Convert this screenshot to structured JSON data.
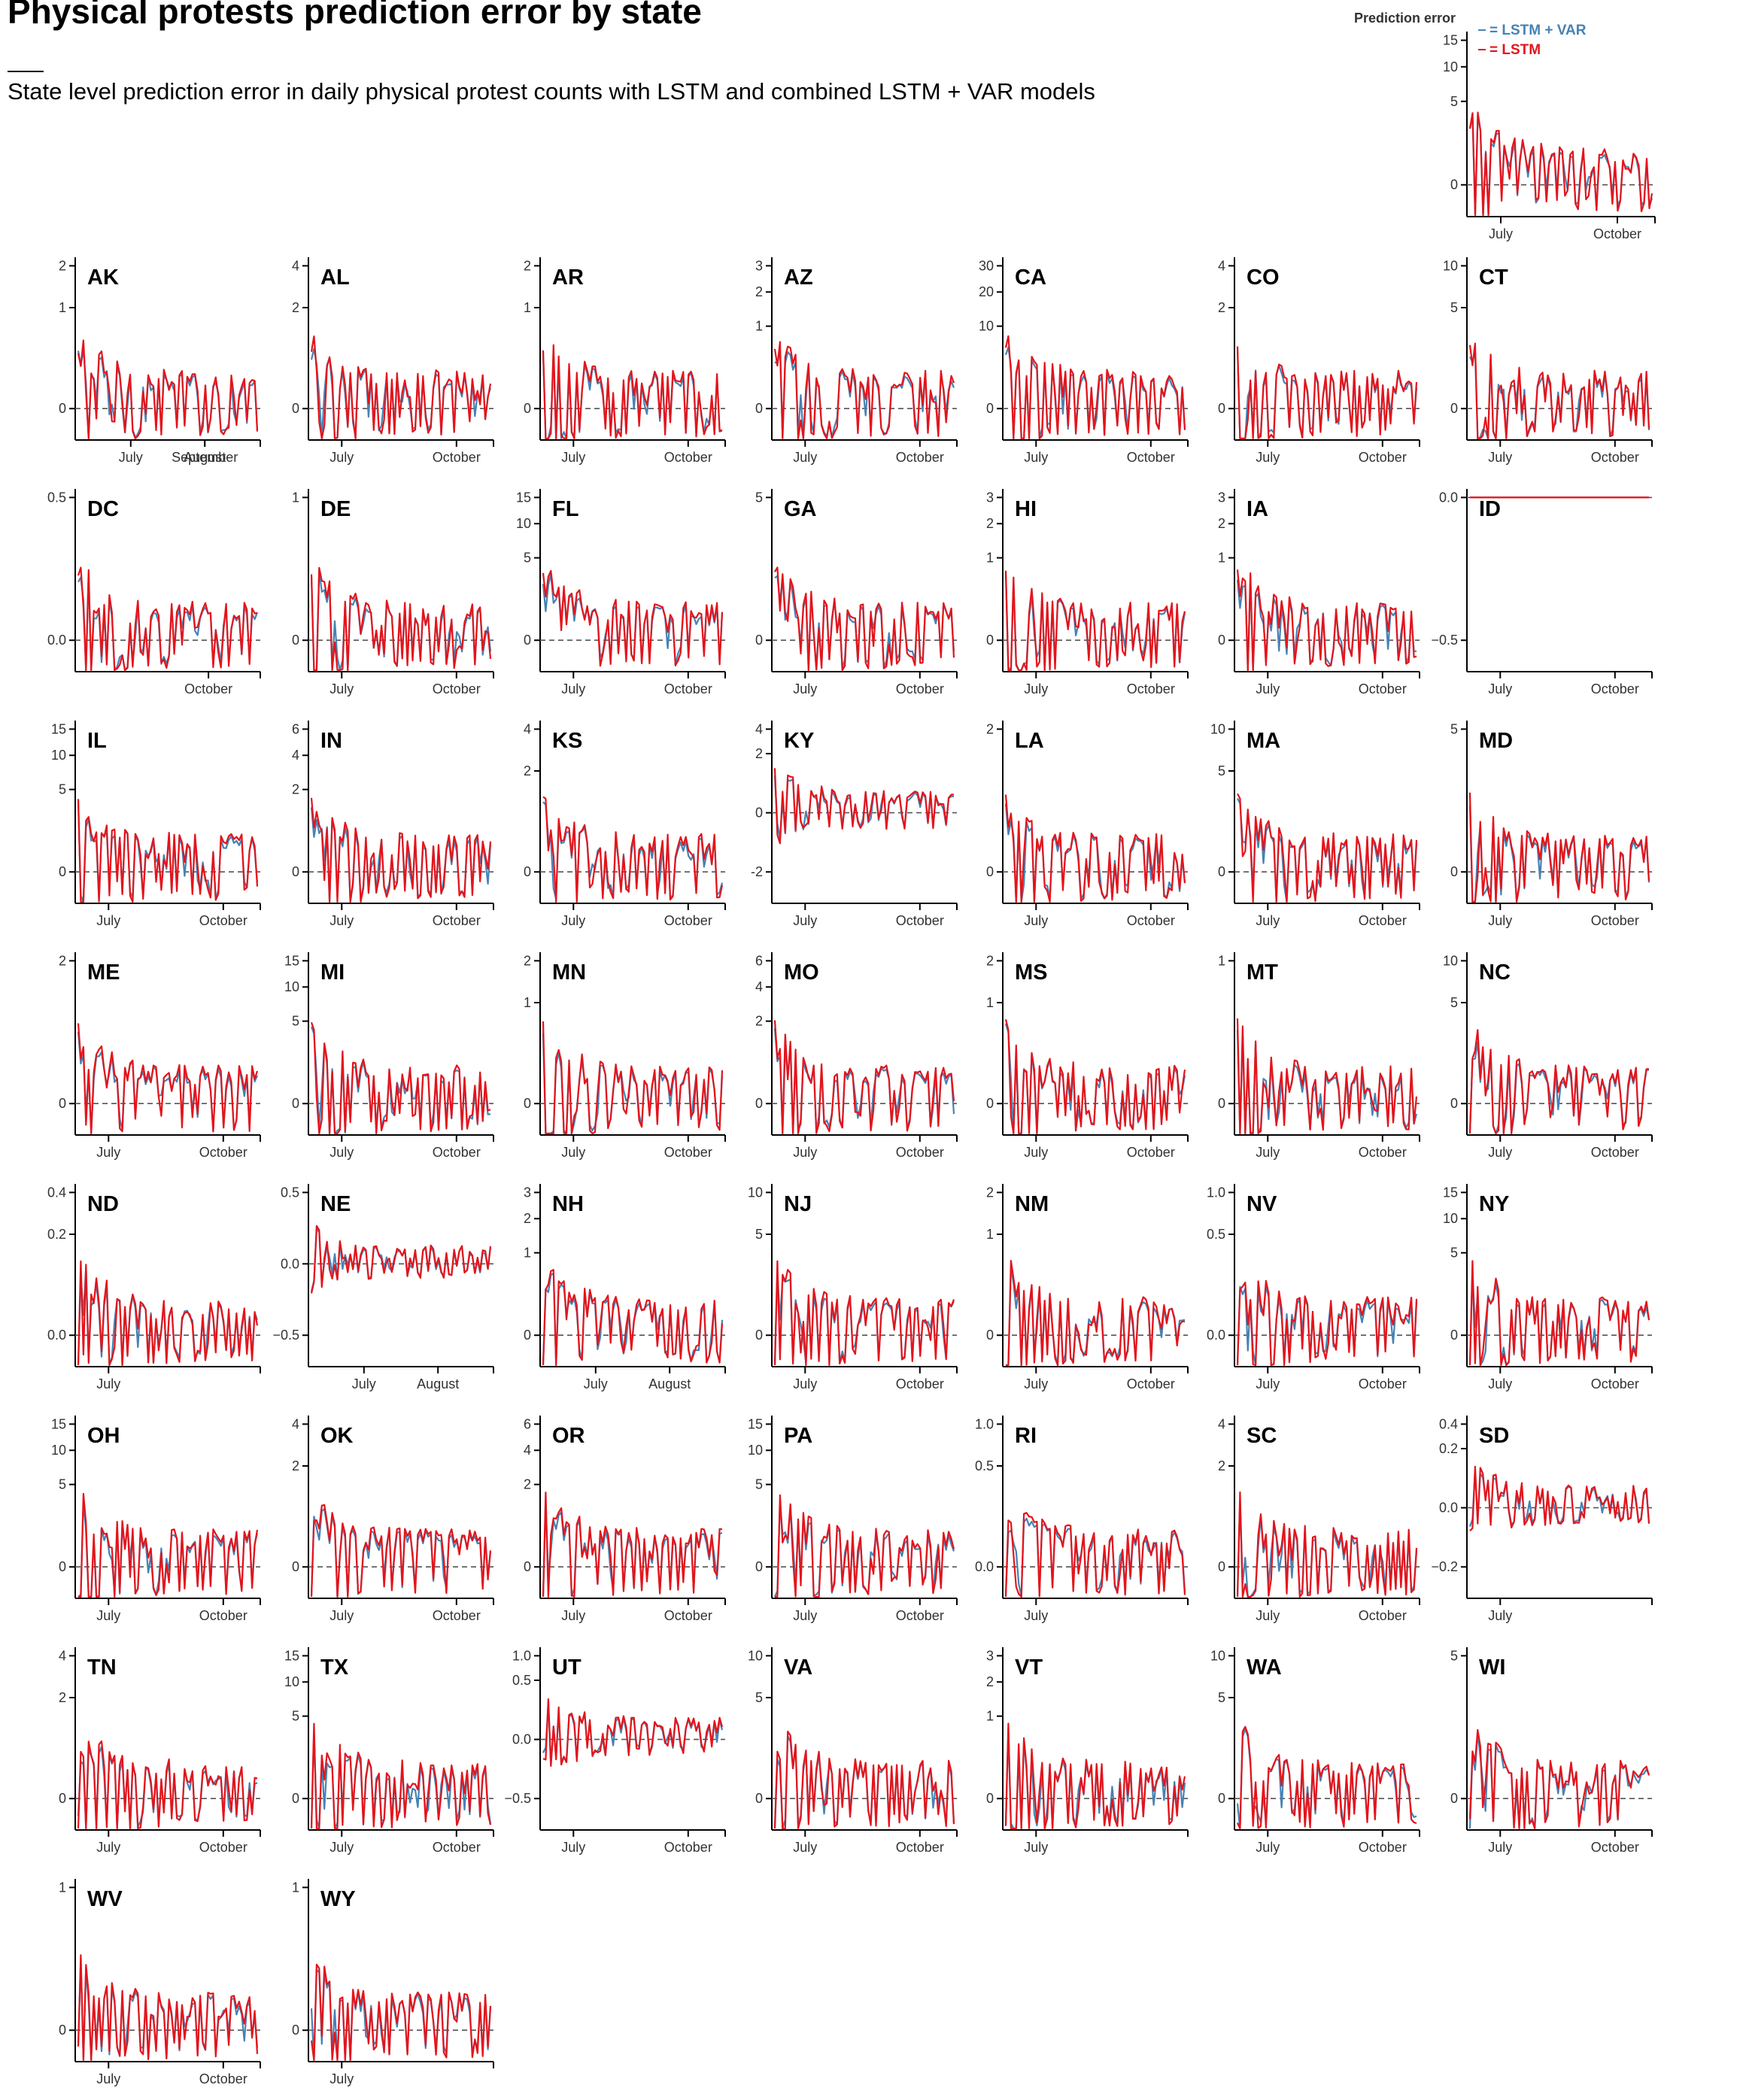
{
  "title": "Physical protests prediction error by state",
  "subtitle": "State level prediction error in daily physical protest counts with LSTM and combined LSTM + VAR models",
  "colors": {
    "lstm_var": "#4682b4",
    "lstm": "#e4141b",
    "zero": "#555555"
  },
  "chart_data": {
    "type": "line",
    "y_axis_transform": "signed-sqrt (ticks not evenly spaced)",
    "zero_reference_line": "dashed grey",
    "legend": {
      "title": "Prediction error",
      "entries": [
        {
          "label": "= LSTM + VAR",
          "color": "#4682b4"
        },
        {
          "label": "= LSTM",
          "color": "#e4141b"
        }
      ]
    },
    "series_names": [
      "LSTM + VAR",
      "LSTM"
    ],
    "x_range": [
      "mid June 2020",
      "late October 2020"
    ],
    "overview": {
      "yticks": [
        0,
        5,
        10,
        15
      ],
      "xticks": [
        "July",
        "October"
      ]
    },
    "panels": [
      {
        "state": "AK",
        "yticks": [
          0,
          1,
          2
        ],
        "xticks": [
          "July",
          "August",
          "September"
        ]
      },
      {
        "state": "AL",
        "yticks": [
          0,
          2,
          4
        ],
        "xticks": [
          "July",
          "October"
        ]
      },
      {
        "state": "AR",
        "yticks": [
          0,
          1,
          2
        ],
        "xticks": [
          "July",
          "October"
        ]
      },
      {
        "state": "AZ",
        "yticks": [
          0,
          1,
          2,
          3
        ],
        "xticks": [
          "July",
          "October"
        ]
      },
      {
        "state": "CA",
        "yticks": [
          0,
          10,
          20,
          30
        ],
        "xticks": [
          "July",
          "October"
        ]
      },
      {
        "state": "CO",
        "yticks": [
          0,
          2,
          4
        ],
        "xticks": [
          "July",
          "October"
        ]
      },
      {
        "state": "CT",
        "yticks": [
          0,
          5,
          10
        ],
        "xticks": [
          "July",
          "October"
        ]
      },
      {
        "state": "DC",
        "yticks": [
          "0.0",
          "0.5"
        ],
        "xticks": [
          "October"
        ]
      },
      {
        "state": "DE",
        "yticks": [
          0,
          1
        ],
        "xticks": [
          "July",
          "October"
        ]
      },
      {
        "state": "FL",
        "yticks": [
          0,
          5,
          10,
          15
        ],
        "xticks": [
          "July",
          "October"
        ]
      },
      {
        "state": "GA",
        "yticks": [
          0,
          5
        ],
        "xticks": [
          "July",
          "October"
        ]
      },
      {
        "state": "HI",
        "yticks": [
          0,
          1,
          2,
          3
        ],
        "xticks": [
          "July",
          "October"
        ]
      },
      {
        "state": "IA",
        "yticks": [
          0,
          1,
          2,
          3
        ],
        "xticks": [
          "July",
          "October"
        ]
      },
      {
        "state": "ID",
        "yticks": [
          "−0.5",
          "0.0"
        ],
        "xticks": [
          "July",
          "October"
        ]
      },
      {
        "state": "IL",
        "yticks": [
          0,
          5,
          10,
          15
        ],
        "xticks": [
          "July",
          "October"
        ]
      },
      {
        "state": "IN",
        "yticks": [
          0,
          2,
          4,
          6
        ],
        "xticks": [
          "July",
          "October"
        ]
      },
      {
        "state": "KS",
        "yticks": [
          0,
          2,
          4
        ],
        "xticks": [
          "July",
          "October"
        ]
      },
      {
        "state": "KY",
        "yticks": [
          -2,
          0,
          2,
          4
        ],
        "xticks": [
          "July",
          "October"
        ]
      },
      {
        "state": "LA",
        "yticks": [
          0,
          2
        ],
        "xticks": [
          "July",
          "October"
        ]
      },
      {
        "state": "MA",
        "yticks": [
          0,
          5,
          10
        ],
        "xticks": [
          "July",
          "October"
        ]
      },
      {
        "state": "MD",
        "yticks": [
          0,
          5
        ],
        "xticks": [
          "July",
          "October"
        ]
      },
      {
        "state": "ME",
        "yticks": [
          0,
          2
        ],
        "xticks": [
          "July",
          "October"
        ]
      },
      {
        "state": "MI",
        "yticks": [
          0,
          5,
          10,
          15
        ],
        "xticks": [
          "July",
          "October"
        ]
      },
      {
        "state": "MN",
        "yticks": [
          0,
          1,
          2
        ],
        "xticks": [
          "July",
          "October"
        ]
      },
      {
        "state": "MO",
        "yticks": [
          0,
          2,
          4,
          6
        ],
        "xticks": [
          "July",
          "October"
        ]
      },
      {
        "state": "MS",
        "yticks": [
          0,
          1,
          2
        ],
        "xticks": [
          "July",
          "October"
        ]
      },
      {
        "state": "MT",
        "yticks": [
          0,
          1
        ],
        "xticks": [
          "July",
          "October"
        ]
      },
      {
        "state": "NC",
        "yticks": [
          0,
          5,
          10
        ],
        "xticks": [
          "July",
          "October"
        ]
      },
      {
        "state": "ND",
        "yticks": [
          "0.0",
          "0.2",
          "0.4"
        ],
        "xticks": [
          "July"
        ]
      },
      {
        "state": "NE",
        "yticks": [
          "−0.5",
          "0.0",
          "0.5"
        ],
        "xticks": [
          "July",
          "August"
        ]
      },
      {
        "state": "NH",
        "yticks": [
          0,
          1,
          2,
          3
        ],
        "xticks": [
          "July",
          "August"
        ]
      },
      {
        "state": "NJ",
        "yticks": [
          0,
          5,
          10
        ],
        "xticks": [
          "July",
          "October"
        ]
      },
      {
        "state": "NM",
        "yticks": [
          0,
          1,
          2
        ],
        "xticks": [
          "July",
          "October"
        ]
      },
      {
        "state": "NV",
        "yticks": [
          "0.0",
          "0.5",
          "1.0"
        ],
        "xticks": [
          "July",
          "October"
        ]
      },
      {
        "state": "NY",
        "yticks": [
          0,
          5,
          10,
          15
        ],
        "xticks": [
          "July",
          "October"
        ]
      },
      {
        "state": "OH",
        "yticks": [
          0,
          5,
          10,
          15
        ],
        "xticks": [
          "July",
          "October"
        ]
      },
      {
        "state": "OK",
        "yticks": [
          0,
          2,
          4
        ],
        "xticks": [
          "July",
          "October"
        ]
      },
      {
        "state": "OR",
        "yticks": [
          0,
          2,
          4,
          6
        ],
        "xticks": [
          "July",
          "October"
        ]
      },
      {
        "state": "PA",
        "yticks": [
          0,
          5,
          10,
          15
        ],
        "xticks": [
          "July",
          "October"
        ]
      },
      {
        "state": "RI",
        "yticks": [
          "0.0",
          "0.5",
          "1.0"
        ],
        "xticks": [
          "July"
        ]
      },
      {
        "state": "SC",
        "yticks": [
          0,
          2,
          4
        ],
        "xticks": [
          "July",
          "October"
        ]
      },
      {
        "state": "SD",
        "yticks": [
          "−0.2",
          "0.0",
          "0.2",
          "0.4"
        ],
        "xticks": [
          "July"
        ]
      },
      {
        "state": "TN",
        "yticks": [
          0,
          2,
          4
        ],
        "xticks": [
          "July",
          "October"
        ]
      },
      {
        "state": "TX",
        "yticks": [
          0,
          5,
          10,
          15
        ],
        "xticks": [
          "July",
          "October"
        ]
      },
      {
        "state": "UT",
        "yticks": [
          "−0.5",
          "0.0",
          "0.5",
          "1.0"
        ],
        "xticks": [
          "July",
          "October"
        ]
      },
      {
        "state": "VA",
        "yticks": [
          0,
          5,
          10
        ],
        "xticks": [
          "July",
          "October"
        ]
      },
      {
        "state": "VT",
        "yticks": [
          0,
          1,
          2,
          3
        ],
        "xticks": [
          "July"
        ]
      },
      {
        "state": "WA",
        "yticks": [
          0,
          5,
          10
        ],
        "xticks": [
          "July",
          "October"
        ]
      },
      {
        "state": "WI",
        "yticks": [
          0,
          5
        ],
        "xticks": [
          "July",
          "October"
        ]
      },
      {
        "state": "WV",
        "yticks": [
          0,
          1
        ],
        "xticks": [
          "July",
          "October"
        ]
      },
      {
        "state": "WY",
        "yticks": [
          0,
          1
        ],
        "xticks": [
          "July"
        ]
      }
    ]
  }
}
